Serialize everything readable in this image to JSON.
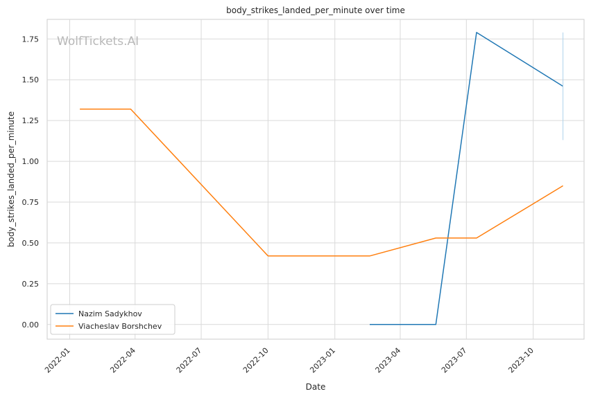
{
  "chart_data": {
    "type": "line",
    "title": "body_strikes_landed_per_minute over time",
    "xlabel": "Date",
    "ylabel": "body_strikes_landed_per_minute",
    "watermark": "WolfTickets.AI",
    "xlim": [
      "2021-12-01",
      "2023-12-10"
    ],
    "ylim": [
      -0.09,
      1.87
    ],
    "x_ticks": [
      "2022-01",
      "2022-04",
      "2022-07",
      "2022-10",
      "2023-01",
      "2023-04",
      "2023-07",
      "2023-10"
    ],
    "y_ticks": [
      "0.00",
      "0.25",
      "0.50",
      "0.75",
      "1.00",
      "1.25",
      "1.50",
      "1.75"
    ],
    "grid": true,
    "legend_position": "lower-left",
    "series": [
      {
        "name": "Nazim Sadykhov",
        "color": "#1f77b4",
        "points": [
          {
            "x": "2023-02-18",
            "y": 0.0
          },
          {
            "x": "2023-05-20",
            "y": 0.0
          },
          {
            "x": "2023-07-15",
            "y": 1.79
          },
          {
            "x": "2023-11-11",
            "y": 1.46
          }
        ]
      },
      {
        "name": "Viacheslav Borshchev",
        "color": "#ff7f0e",
        "points": [
          {
            "x": "2022-01-15",
            "y": 1.32
          },
          {
            "x": "2022-03-26",
            "y": 1.32
          },
          {
            "x": "2022-10-01",
            "y": 0.42
          },
          {
            "x": "2023-02-18",
            "y": 0.42
          },
          {
            "x": "2023-05-20",
            "y": 0.53
          },
          {
            "x": "2023-07-15",
            "y": 0.53
          },
          {
            "x": "2023-11-11",
            "y": 0.85
          }
        ]
      }
    ],
    "annotations": [
      {
        "type": "vertical-range",
        "x": "2023-11-11",
        "y_range": [
          1.13,
          1.79
        ],
        "color": "#aed3ec"
      }
    ]
  }
}
